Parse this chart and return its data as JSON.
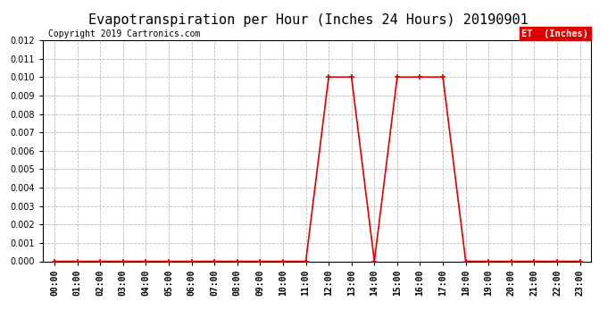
{
  "title": "Evapotranspiration per Hour (Inches 24 Hours) 20190901",
  "copyright": "Copyright 2019 Cartronics.com",
  "legend_label": "ET  (Inches)",
  "legend_bg": "#dd0000",
  "line_color": "#dd0000",
  "marker_color": "#dd0000",
  "bg_color": "#ffffff",
  "grid_color": "#bbbbbb",
  "ylim": [
    0,
    0.012
  ],
  "yticks": [
    0.0,
    0.001,
    0.002,
    0.003,
    0.004,
    0.005,
    0.006,
    0.007,
    0.008,
    0.009,
    0.01,
    0.011,
    0.012
  ],
  "hours": [
    0,
    1,
    2,
    3,
    4,
    5,
    6,
    7,
    8,
    9,
    10,
    11,
    12,
    13,
    14,
    15,
    16,
    17,
    18,
    19,
    20,
    21,
    22,
    23
  ],
  "values": [
    0,
    0,
    0,
    0,
    0,
    0,
    0,
    0,
    0,
    0,
    0,
    0,
    0.01,
    0.01,
    0.0,
    0.01,
    0.01,
    0.01,
    0,
    0,
    0,
    0,
    0,
    0
  ],
  "title_fontsize": 11,
  "tick_fontsize": 7,
  "copyright_fontsize": 7,
  "legend_fontsize": 7.5
}
